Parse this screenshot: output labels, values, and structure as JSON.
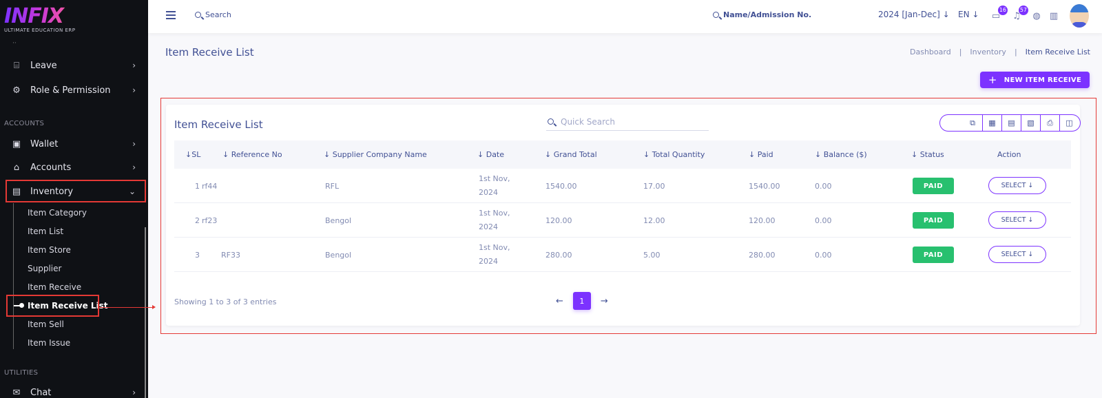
{
  "brand": {
    "name": "INFIX",
    "tagline": "ULTIMATE EDUCATION ERP"
  },
  "sidebar": {
    "items": [
      {
        "label": "Leave",
        "icon": "leave-icon"
      },
      {
        "label": "Role & Permission",
        "icon": "role-icon"
      },
      {
        "label": "Wallet",
        "icon": "wallet-icon"
      },
      {
        "label": "Accounts",
        "icon": "bank-icon"
      },
      {
        "label": "Inventory",
        "icon": "inventory-icon"
      },
      {
        "label": "Chat",
        "icon": "chat-icon"
      }
    ],
    "sections": {
      "accounts": "ACCOUNTS",
      "utilities": "UTILITIES"
    },
    "inventory_sub": [
      "Item Category",
      "Item List",
      "Item Store",
      "Supplier",
      "Item Receive",
      "Item Receive List",
      "Item Sell",
      "Item Issue"
    ]
  },
  "topbar": {
    "search_label": "Search",
    "student_search_label": "Name/Admission No.",
    "academic_year": "2024 [Jan-Dec]",
    "language": "EN",
    "message_count": "16",
    "notification_count": "57"
  },
  "header": {
    "title": "Item Receive List",
    "breadcrumb": [
      "Dashboard",
      "Inventory",
      "Item Receive List"
    ],
    "separator": "|",
    "new_button": "NEW ITEM RECEIVE"
  },
  "card": {
    "title": "Item Receive List",
    "search_placeholder": "Quick Search",
    "columns": [
      "SL",
      "Reference No",
      "Supplier Company Name",
      "Date",
      "Grand Total",
      "Total Quantity",
      "Paid",
      "Balance ($)",
      "Status",
      "Action"
    ],
    "rows": [
      {
        "sl": "1",
        "ref": "rf44",
        "supplier": "RFL",
        "date": "1st Nov, 2024",
        "grand_total": "1540.00",
        "quantity": "17.00",
        "paid": "1540.00",
        "balance": "0.00",
        "status": "PAID",
        "action": "SELECT"
      },
      {
        "sl": "2",
        "ref": "rf23",
        "supplier": "Bengol",
        "date": "1st Nov, 2024",
        "grand_total": "120.00",
        "quantity": "12.00",
        "paid": "120.00",
        "balance": "0.00",
        "status": "PAID",
        "action": "SELECT"
      },
      {
        "sl": "3",
        "ref": "RF33",
        "supplier": "Bengol",
        "date": "1st Nov, 2024",
        "grand_total": "280.00",
        "quantity": "5.00",
        "paid": "280.00",
        "balance": "0.00",
        "status": "PAID",
        "action": "SELECT"
      }
    ],
    "showing": "Showing 1 to 3 of 3 entries",
    "current_page": "1"
  },
  "colors": {
    "accent": "#7c32ff",
    "paid": "#28c06f",
    "highlight": "#e53935",
    "sidebar_bg": "#0f1115"
  }
}
